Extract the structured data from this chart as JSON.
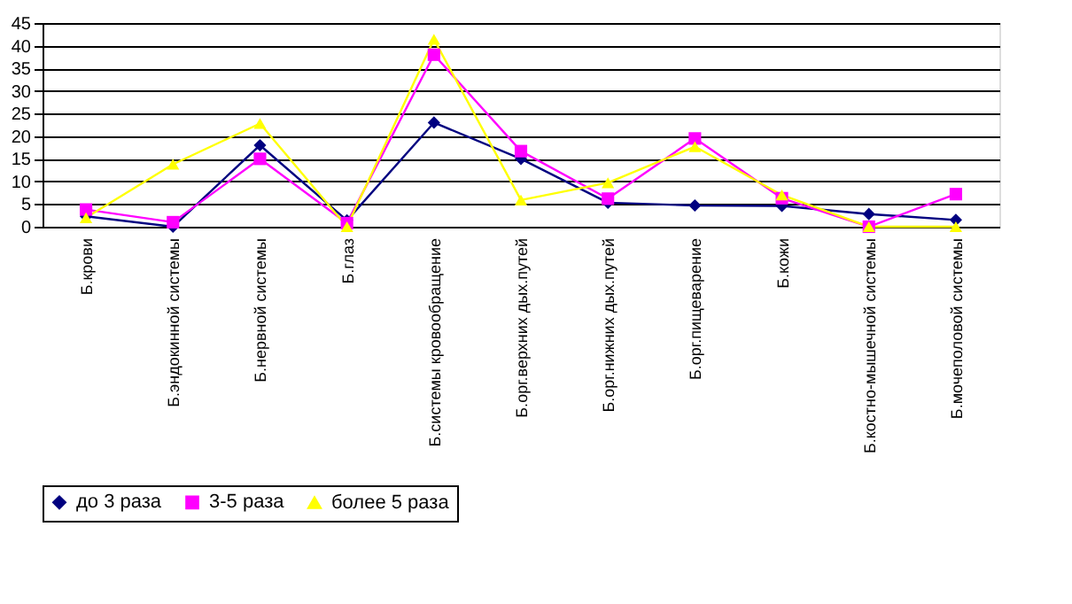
{
  "chart_data": {
    "type": "line",
    "categories": [
      "Б.крови",
      "Б.эндокинной системы",
      "Б.нервной системы",
      "Б.глаз",
      "Б.системы кровообращение",
      "Б.орг.верхних дых.путей",
      "Б.орг.нижних дых.путей",
      "Б.орг.пищеварение",
      "Б.кожи",
      "Б.костно-мышечной системы",
      "Б.мочеполовой системы"
    ],
    "series": [
      {
        "name": "до 3 раза",
        "color": "#000080",
        "marker": "diamond",
        "values": [
          2.3,
          0,
          18,
          1.4,
          23,
          15,
          5.3,
          4.7,
          4.6,
          2.8,
          1.5
        ]
      },
      {
        "name": "3-5 раза",
        "color": "#ff00ff",
        "marker": "square",
        "values": [
          3.8,
          1,
          15,
          0.8,
          38,
          16.7,
          6.2,
          19.5,
          6.3,
          0,
          7.2
        ]
      },
      {
        "name": "более 5 раза",
        "color": "#ffff00",
        "marker": "triangle",
        "values": [
          2,
          13.8,
          22.8,
          0,
          41.4,
          5.9,
          9.7,
          17.7,
          7,
          0,
          0
        ]
      }
    ],
    "ylim": [
      0,
      45
    ],
    "yticks": [
      0,
      5,
      10,
      15,
      20,
      25,
      30,
      35,
      40,
      45
    ],
    "grid": "y",
    "legend": "bottom"
  }
}
